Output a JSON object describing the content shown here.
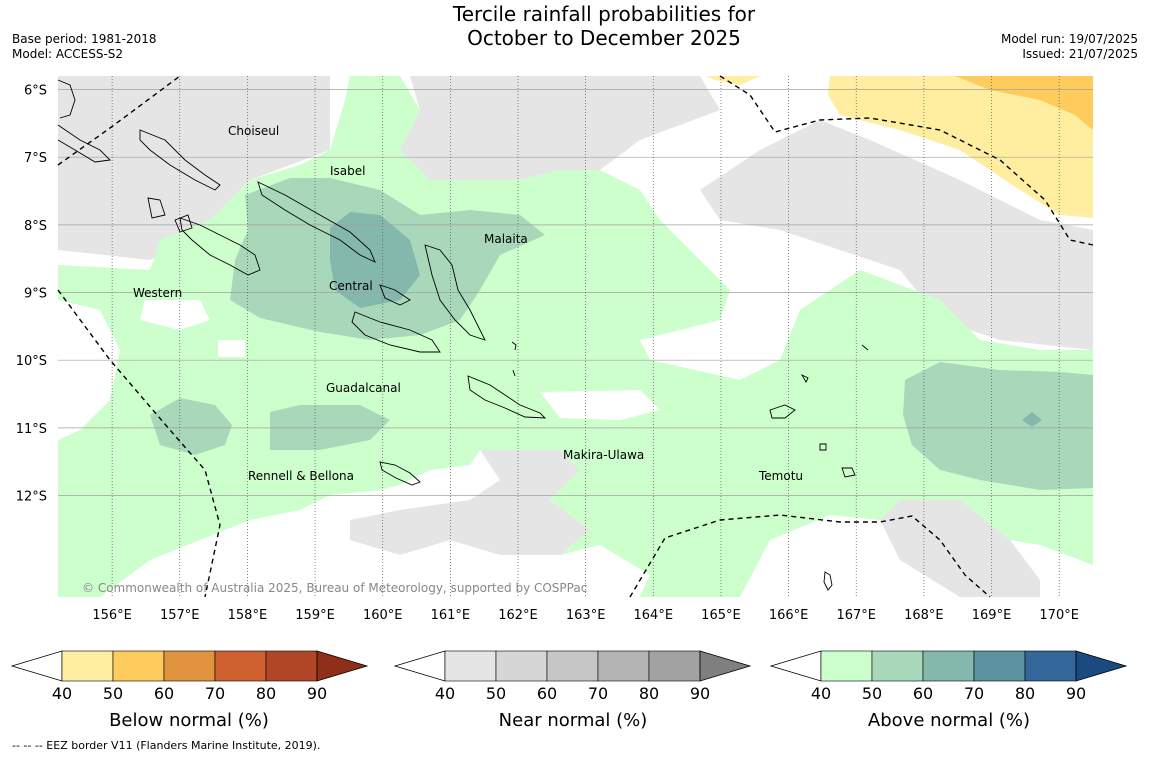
{
  "header": {
    "title_line1": "Tercile rainfall probabilities for",
    "title_line2": "October to December 2025",
    "base_period": "Base period: 1981-2018",
    "model": "Model: ACCESS-S2",
    "model_run": "Model run: 19/07/2025",
    "issued": "Issued: 21/07/2025"
  },
  "map": {
    "lat_labels": [
      "6°S",
      "7°S",
      "8°S",
      "9°S",
      "10°S",
      "11°S",
      "12°S"
    ],
    "lon_labels": [
      "156°E",
      "157°E",
      "158°E",
      "159°E",
      "160°E",
      "161°E",
      "162°E",
      "163°E",
      "164°E",
      "165°E",
      "166°E",
      "167°E",
      "168°E",
      "169°E",
      "170°E"
    ],
    "provinces": {
      "choiseul": "Choiseul",
      "isabel": "Isabel",
      "malaita": "Malaita",
      "western": "Western",
      "central": "Central",
      "guadalcanal": "Guadalcanal",
      "makira": "Makira-Ulawa",
      "temotu": "Temotu",
      "rennell": "Rennell & Bellona"
    },
    "copyright": "© Commonwealth of Australia 2025, Bureau of Meteorology, supported by COSPPac"
  },
  "colors": {
    "below": [
      "#ffeda0",
      "#fecc5c",
      "#e2933f",
      "#cf6131",
      "#b04626",
      "#8f2f1a"
    ],
    "near": [
      "#e5e5e5",
      "#d6d6d6",
      "#c6c6c6",
      "#b4b4b4",
      "#a2a2a2",
      "#7f7f7f"
    ],
    "above": [
      "#ccffcc",
      "#a8d8b9",
      "#84b8ad",
      "#5b93a0",
      "#336699",
      "#1a4a80"
    ]
  },
  "legend": {
    "ticks": [
      "40",
      "50",
      "60",
      "70",
      "80",
      "90"
    ],
    "below_title": "Below normal (%)",
    "near_title": "Near normal (%)",
    "above_title": "Above normal (%)"
  },
  "footnote": "-- -- -- EEZ border V11 (Flanders Marine Institute, 2019)."
}
